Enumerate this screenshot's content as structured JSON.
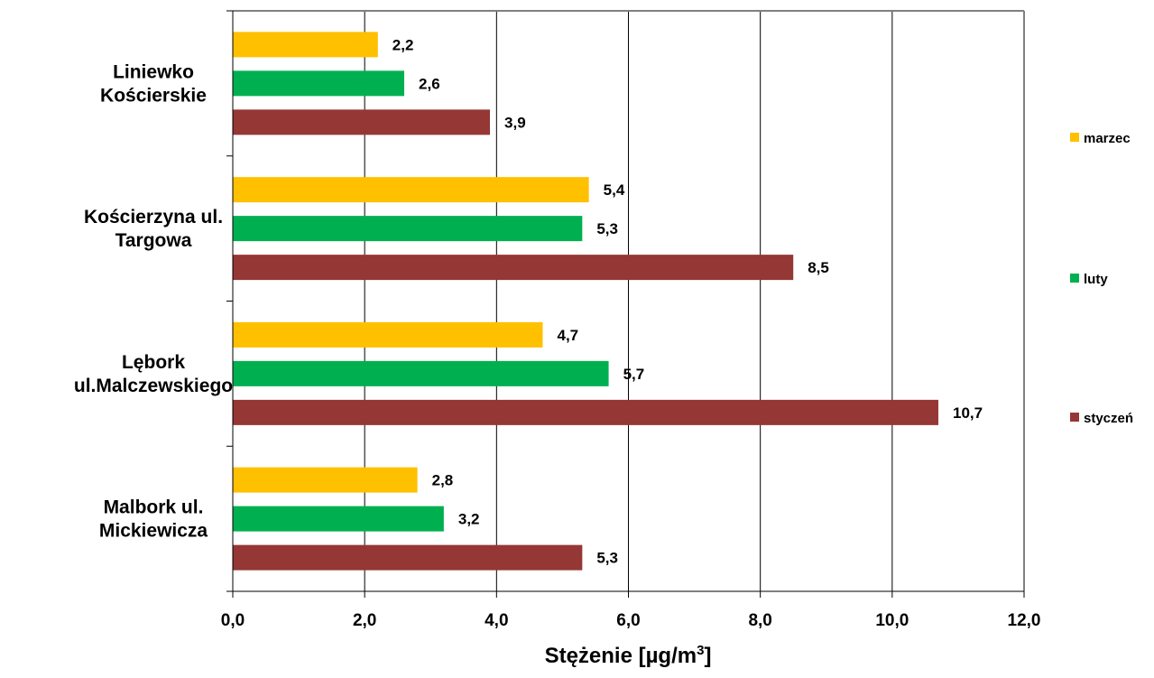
{
  "chart_data": {
    "type": "bar",
    "orientation": "horizontal",
    "title": "",
    "xlabel": "Stężenie [µg/m",
    "xlabel_sup": "3",
    "xlabel_close": "]",
    "ylabel": "",
    "xlim": [
      0,
      12
    ],
    "xticks": [
      "0,0",
      "2,0",
      "4,0",
      "6,0",
      "8,0",
      "10,0",
      "12,0"
    ],
    "grid": "vertical",
    "legend_position": "right",
    "categories": [
      [
        "Liniewko",
        "Kościerskie"
      ],
      [
        "Kościerzyna ul.",
        "Targowa"
      ],
      [
        "Lębork",
        "ul.Malczewskiego"
      ],
      [
        "Malbork ul.",
        "Mickiewicza"
      ]
    ],
    "series": [
      {
        "name": "marzec",
        "color": "#FFC000",
        "values": [
          2.2,
          5.4,
          4.7,
          2.8
        ],
        "labels": [
          "2,2",
          "5,4",
          "4,7",
          "2,8"
        ]
      },
      {
        "name": "luty",
        "color": "#00B050",
        "values": [
          2.6,
          5.3,
          5.7,
          3.2
        ],
        "labels": [
          "2,6",
          "5,3",
          "5,7",
          "3,2"
        ]
      },
      {
        "name": "styczeń",
        "color": "#953735",
        "values": [
          3.9,
          8.5,
          10.7,
          5.3
        ],
        "labels": [
          "3,9",
          "8,5",
          "10,7",
          "5,3"
        ]
      }
    ]
  }
}
